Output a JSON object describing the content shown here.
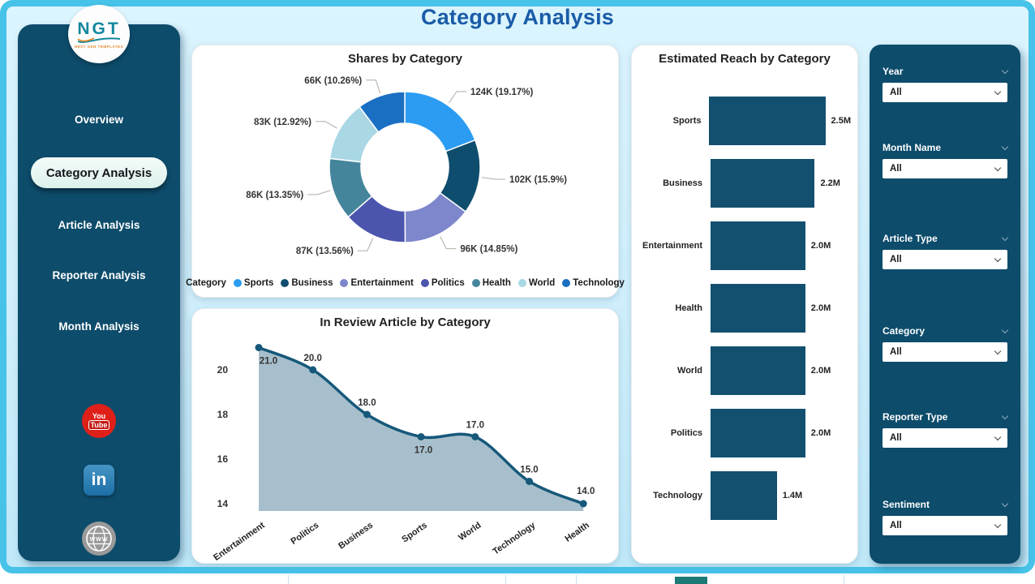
{
  "page": {
    "title": "Category Analysis"
  },
  "sidebar": {
    "logo": {
      "text": "NGT",
      "subtext": "NEXT GEN TEMPLATES"
    },
    "items": [
      {
        "label": "Overview",
        "active": false
      },
      {
        "label": "Category Analysis",
        "active": true
      },
      {
        "label": "Article Analysis",
        "active": false
      },
      {
        "label": "Reporter Analysis",
        "active": false
      },
      {
        "label": "Month Analysis",
        "active": false
      }
    ],
    "social": {
      "youtube": {
        "line1": "You",
        "line2": "Tube"
      },
      "linkedin": {
        "text": "in"
      },
      "website": {
        "text": "www"
      }
    }
  },
  "filters": [
    {
      "label": "Year",
      "value": "All"
    },
    {
      "label": "Month Name",
      "value": "All"
    },
    {
      "label": "Article Type",
      "value": "All"
    },
    {
      "label": "Category",
      "value": "All"
    },
    {
      "label": "Reporter Type",
      "value": "All"
    },
    {
      "label": "Sentiment",
      "value": "All"
    }
  ],
  "chart_data": [
    {
      "type": "pie",
      "title": "Shares by Category",
      "legend_title": "Category",
      "slices": [
        {
          "label": "Sports",
          "value_text": "124K",
          "pct": 19.17,
          "color": "#2b9cf2"
        },
        {
          "label": "Business",
          "value_text": "102K",
          "pct": 15.9,
          "color": "#0e4d6e"
        },
        {
          "label": "Entertainment",
          "value_text": "96K",
          "pct": 14.85,
          "color": "#7e86cc"
        },
        {
          "label": "Politics",
          "value_text": "87K",
          "pct": 13.56,
          "color": "#4c55ae"
        },
        {
          "label": "Health",
          "value_text": "86K",
          "pct": 13.35,
          "color": "#45859b"
        },
        {
          "label": "World",
          "value_text": "83K",
          "pct": 12.92,
          "color": "#a9d7e4"
        },
        {
          "label": "Technology",
          "value_text": "66K",
          "pct": 10.26,
          "color": "#1b6fc2"
        }
      ]
    },
    {
      "type": "bar",
      "orientation": "horizontal",
      "title": "Estimated Reach by Category",
      "categories": [
        "Sports",
        "Business",
        "Entertainment",
        "Health",
        "World",
        "Politics",
        "Technology"
      ],
      "values": [
        2.5,
        2.2,
        2.0,
        2.0,
        2.0,
        2.0,
        1.4
      ],
      "value_labels": [
        "2.5M",
        "2.2M",
        "2.0M",
        "2.0M",
        "2.0M",
        "2.0M",
        "1.4M"
      ],
      "xlim": [
        0,
        2.5
      ],
      "bar_color": "#13506f"
    },
    {
      "type": "area",
      "title": "In Review Article by Category",
      "categories": [
        "Entertainment",
        "Politics",
        "Business",
        "Sports",
        "World",
        "Technology",
        "Health"
      ],
      "values": [
        21.0,
        20.0,
        18.0,
        17.0,
        17.0,
        15.0,
        14.0
      ],
      "value_labels": [
        "21.0",
        "20.0",
        "18.0",
        "17.0",
        "17.0",
        "15.0",
        "14.0"
      ],
      "yticks": [
        14,
        16,
        18,
        20
      ],
      "ylim": [
        13.7,
        21.8
      ],
      "grid": false,
      "line_color": "#16587a",
      "fill_color": "#a7bfcc"
    }
  ]
}
